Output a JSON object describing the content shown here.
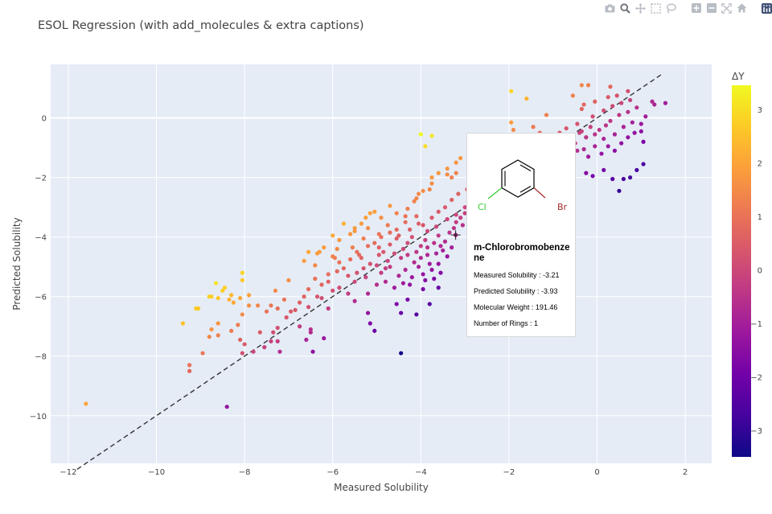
{
  "chart_data": {
    "type": "scatter",
    "title": "ESOL Regression (with add_molecules & extra captions)",
    "xlabel": "Measured Solubility",
    "ylabel": "Predicted Solubility",
    "xlim": [
      -12.4,
      2.6
    ],
    "ylim": [
      -11.6,
      1.8
    ],
    "x_ticks": [
      -12,
      -10,
      -8,
      -6,
      -4,
      -2,
      0,
      2
    ],
    "y_ticks": [
      -10,
      -8,
      -6,
      -4,
      -2,
      0
    ],
    "grid": true,
    "colorbar": {
      "title": "ΔY",
      "range": [
        -3.5,
        3.45
      ],
      "ticks": [
        -3,
        -2,
        -1,
        0,
        1,
        2,
        3
      ],
      "colorscale": [
        "#0d0887",
        "#46039f",
        "#7201a8",
        "#9c179e",
        "#bd3786",
        "#d8576b",
        "#ed7953",
        "#fb9f3a",
        "#fdca26",
        "#f0f921"
      ]
    },
    "reference_line": {
      "x": [
        -11.8,
        1.5
      ],
      "y": [
        -11.8,
        1.5
      ],
      "color": "#333333",
      "dash": true
    },
    "points": [
      [
        -11.6,
        -9.6
      ],
      [
        -8.4,
        -9.7
      ],
      [
        -4.45,
        -7.9
      ],
      [
        -9.25,
        -8.3
      ],
      [
        -9.25,
        -8.5
      ],
      [
        -9.4,
        -6.9
      ],
      [
        -8.95,
        -7.9
      ],
      [
        -9.1,
        -6.4
      ],
      [
        -9.05,
        -6.4
      ],
      [
        -8.8,
        -6.0
      ],
      [
        -8.75,
        -6.0
      ],
      [
        -8.6,
        -6.05
      ],
      [
        -8.35,
        -6.1
      ],
      [
        -8.1,
        -6.05
      ],
      [
        -8.5,
        -5.8
      ],
      [
        -8.65,
        -5.55
      ],
      [
        -8.05,
        -5.2
      ],
      [
        -8.05,
        -5.45
      ],
      [
        -8.45,
        -5.7
      ],
      [
        -8.25,
        -6.2
      ],
      [
        -8.3,
        -5.95
      ],
      [
        -7.9,
        -5.95
      ],
      [
        -7.9,
        -6.3
      ],
      [
        -7.7,
        -6.3
      ],
      [
        -8.6,
        -6.9
      ],
      [
        -8.6,
        -7.3
      ],
      [
        -8.75,
        -7.1
      ],
      [
        -8.8,
        -7.35
      ],
      [
        -8.3,
        -7.15
      ],
      [
        -8.1,
        -7.45
      ],
      [
        -8.05,
        -6.6
      ],
      [
        -8.15,
        -6.95
      ],
      [
        -7.65,
        -7.2
      ],
      [
        -8.0,
        -7.6
      ],
      [
        -8.05,
        -7.9
      ],
      [
        -7.8,
        -7.85
      ],
      [
        -7.55,
        -7.7
      ],
      [
        -7.4,
        -7.5
      ],
      [
        -7.35,
        -7.2
      ],
      [
        -7.25,
        -7.05
      ],
      [
        -7.25,
        -7.5
      ],
      [
        -7.2,
        -7.85
      ],
      [
        -7.5,
        -6.5
      ],
      [
        -7.25,
        -6.4
      ],
      [
        -7.1,
        -6.1
      ],
      [
        -7.3,
        -5.8
      ],
      [
        -7.4,
        -6.3
      ],
      [
        -7.0,
        -5.45
      ],
      [
        -6.95,
        -6.5
      ],
      [
        -6.75,
        -7.0
      ],
      [
        -6.5,
        -7.1
      ],
      [
        -6.5,
        -7.2
      ],
      [
        -6.6,
        -7.45
      ],
      [
        -6.45,
        -7.85
      ],
      [
        -6.2,
        -7.4
      ],
      [
        -6.35,
        -6.0
      ],
      [
        -6.1,
        -6.4
      ],
      [
        -6.1,
        -5.25
      ],
      [
        -6.4,
        -4.95
      ],
      [
        -6.35,
        -4.55
      ],
      [
        -6.3,
        -4.5
      ],
      [
        -6.0,
        -4.65
      ],
      [
        -5.95,
        -4.7
      ],
      [
        -5.85,
        -4.85
      ],
      [
        -5.9,
        -4.4
      ],
      [
        -6.0,
        -3.95
      ],
      [
        -5.75,
        -3.55
      ],
      [
        -5.5,
        -3.7
      ],
      [
        -5.5,
        -3.8
      ],
      [
        -5.35,
        -3.55
      ],
      [
        -5.25,
        -3.35
      ],
      [
        -5.15,
        -3.2
      ],
      [
        -5.05,
        -3.15
      ],
      [
        -4.9,
        -3.35
      ],
      [
        -4.7,
        -2.95
      ],
      [
        -4.55,
        -3.2
      ],
      [
        -4.35,
        -3.3
      ],
      [
        -4.3,
        -3.05
      ],
      [
        -4.15,
        -2.8
      ],
      [
        -4.1,
        -2.7
      ],
      [
        -4.05,
        -2.55
      ],
      [
        -3.95,
        -2.45
      ],
      [
        -3.8,
        -2.4
      ],
      [
        -3.75,
        -2.2
      ],
      [
        -3.75,
        -2.0
      ],
      [
        -3.6,
        -1.85
      ],
      [
        -3.4,
        -1.7
      ],
      [
        -3.4,
        -1.9
      ],
      [
        -3.3,
        -2.0
      ],
      [
        -3.2,
        -1.85
      ],
      [
        -4.0,
        -0.55
      ],
      [
        -3.9,
        -0.95
      ],
      [
        -3.75,
        -0.6
      ],
      [
        -3.2,
        -1.5
      ],
      [
        -3.1,
        -1.35
      ],
      [
        -2.85,
        -1.95
      ],
      [
        -2.75,
        -2.2
      ],
      [
        -2.7,
        -1.3
      ],
      [
        -1.95,
        0.9
      ],
      [
        -1.6,
        0.65
      ],
      [
        -1.95,
        -0.15
      ],
      [
        -1.9,
        -0.4
      ],
      [
        -1.7,
        -0.6
      ],
      [
        -1.45,
        -0.3
      ],
      [
        -1.3,
        -0.5
      ],
      [
        -1.25,
        -0.95
      ],
      [
        -1.15,
        0.1
      ],
      [
        -0.35,
        1.1
      ],
      [
        -0.2,
        1.1
      ],
      [
        -0.55,
        0.75
      ],
      [
        -0.3,
        0.45
      ],
      [
        -0.35,
        0.3
      ],
      [
        0.3,
        1.05
      ],
      [
        0.7,
        0.9
      ],
      [
        1.55,
        0.5
      ],
      [
        1.25,
        0.55
      ],
      [
        1.3,
        0.45
      ],
      [
        -0.1,
        0.05
      ],
      [
        -0.25,
        -0.65
      ],
      [
        -0.4,
        -0.5
      ],
      [
        -5.3,
        -4.05
      ],
      [
        -5.45,
        -4.5
      ],
      [
        -5.2,
        -4.3
      ],
      [
        -5.05,
        -4.2
      ],
      [
        -4.95,
        -4.35
      ],
      [
        -4.85,
        -4.5
      ],
      [
        -4.7,
        -4.25
      ],
      [
        -4.55,
        -4.05
      ],
      [
        -4.4,
        -4.4
      ],
      [
        -4.3,
        -4.2
      ],
      [
        -4.2,
        -4.0
      ],
      [
        -4.1,
        -4.5
      ],
      [
        -4.0,
        -4.3
      ],
      [
        -3.9,
        -4.1
      ],
      [
        -3.85,
        -4.35
      ],
      [
        -3.7,
        -4.2
      ],
      [
        -3.6,
        -3.95
      ],
      [
        -3.55,
        -4.3
      ],
      [
        -3.45,
        -4.15
      ],
      [
        -3.35,
        -3.85
      ],
      [
        -3.25,
        -3.7
      ],
      [
        -3.2,
        -3.5
      ],
      [
        -3.1,
        -3.35
      ],
      [
        -3.05,
        -3.6
      ],
      [
        -3.0,
        -3.2
      ],
      [
        -2.9,
        -3.0
      ],
      [
        -2.85,
        -2.8
      ],
      [
        -2.8,
        -3.3
      ],
      [
        -2.7,
        -2.9
      ],
      [
        -2.6,
        -2.6
      ],
      [
        -2.55,
        -2.4
      ],
      [
        -2.5,
        -2.75
      ],
      [
        -5.6,
        -4.75
      ],
      [
        -5.55,
        -4.35
      ],
      [
        -5.35,
        -4.7
      ],
      [
        -5.15,
        -4.9
      ],
      [
        -4.95,
        -4.6
      ],
      [
        -4.75,
        -4.8
      ],
      [
        -4.6,
        -4.55
      ],
      [
        -4.45,
        -4.7
      ],
      [
        -4.3,
        -4.6
      ],
      [
        -4.15,
        -4.85
      ],
      [
        -4.0,
        -4.7
      ],
      [
        -3.85,
        -4.6
      ],
      [
        -3.8,
        -4.9
      ],
      [
        -3.65,
        -4.55
      ],
      [
        -3.5,
        -4.45
      ],
      [
        -3.4,
        -4.65
      ],
      [
        -3.3,
        -4.35
      ],
      [
        -4.9,
        -5.2
      ],
      [
        -4.7,
        -5.0
      ],
      [
        -4.5,
        -5.3
      ],
      [
        -4.35,
        -5.1
      ],
      [
        -4.2,
        -5.35
      ],
      [
        -4.05,
        -5.0
      ],
      [
        -3.95,
        -5.25
      ],
      [
        -3.75,
        -5.1
      ],
      [
        -3.6,
        -4.9
      ],
      [
        -4.4,
        -5.55
      ],
      [
        -4.25,
        -5.6
      ],
      [
        -3.9,
        -5.45
      ],
      [
        -5.25,
        -5.35
      ],
      [
        -5.45,
        -5.2
      ],
      [
        -5.5,
        -5.5
      ],
      [
        -5.65,
        -5.3
      ],
      [
        -5.75,
        -5.05
      ],
      [
        -5.9,
        -5.15
      ],
      [
        -6.1,
        -5.5
      ],
      [
        -6.25,
        -5.6
      ],
      [
        -6.4,
        -5.4
      ],
      [
        -6.55,
        -5.75
      ],
      [
        -6.65,
        -6.0
      ],
      [
        -6.75,
        -6.2
      ],
      [
        -6.85,
        -6.45
      ],
      [
        -7.05,
        -6.7
      ],
      [
        -6.55,
        -6.35
      ],
      [
        -6.25,
        -6.05
      ],
      [
        -6.0,
        -5.8
      ],
      [
        -5.85,
        -5.7
      ],
      [
        -5.65,
        -5.9
      ],
      [
        -5.5,
        -6.15
      ],
      [
        -5.2,
        -5.9
      ],
      [
        -5.0,
        -5.6
      ],
      [
        -4.8,
        -5.5
      ],
      [
        -4.6,
        -5.7
      ],
      [
        -6.65,
        -4.8
      ],
      [
        -6.55,
        -4.5
      ],
      [
        -6.2,
        -4.35
      ],
      [
        -5.85,
        -4.1
      ],
      [
        -5.6,
        -3.9
      ],
      [
        -5.2,
        -3.7
      ],
      [
        -4.95,
        -3.9
      ],
      [
        -4.75,
        -3.6
      ],
      [
        -4.55,
        -3.75
      ],
      [
        -4.35,
        -3.5
      ],
      [
        -4.1,
        -3.3
      ],
      [
        -3.95,
        -3.6
      ],
      [
        -3.75,
        -3.35
      ],
      [
        -3.6,
        -3.15
      ],
      [
        -3.45,
        -3.0
      ],
      [
        -3.3,
        -2.75
      ],
      [
        -3.15,
        -2.55
      ],
      [
        -2.95,
        -2.4
      ],
      [
        -2.85,
        -2.15
      ],
      [
        -4.9,
        -4.0
      ],
      [
        -4.7,
        -3.85
      ],
      [
        -4.5,
        -3.95
      ],
      [
        -4.25,
        -3.75
      ],
      [
        -4.05,
        -3.55
      ],
      [
        -3.85,
        -3.8
      ],
      [
        -3.65,
        -3.65
      ],
      [
        -3.4,
        -3.4
      ],
      [
        -3.2,
        -3.25
      ],
      [
        -3.0,
        -3.0
      ],
      [
        -2.75,
        -2.75
      ],
      [
        -2.6,
        -2.95
      ],
      [
        -2.45,
        -2.55
      ],
      [
        -2.3,
        -2.35
      ],
      [
        -2.15,
        -2.1
      ],
      [
        -2.0,
        -1.95
      ],
      [
        -1.85,
        -1.75
      ],
      [
        -1.75,
        -2.05
      ],
      [
        -1.6,
        -1.6
      ],
      [
        -1.45,
        -1.35
      ],
      [
        -1.3,
        -1.15
      ],
      [
        -1.15,
        -0.9
      ],
      [
        -1.0,
        -0.7
      ],
      [
        -0.85,
        -0.5
      ],
      [
        -0.7,
        -0.35
      ],
      [
        -0.6,
        -0.6
      ],
      [
        -0.5,
        -0.85
      ],
      [
        -0.45,
        -0.2
      ],
      [
        -0.35,
        -0.45
      ],
      [
        -0.25,
        -0.65
      ],
      [
        -0.15,
        -0.3
      ],
      [
        -0.05,
        -0.55
      ],
      [
        0.05,
        -0.4
      ],
      [
        0.15,
        -0.7
      ],
      [
        0.2,
        -0.25
      ],
      [
        0.3,
        -0.1
      ],
      [
        0.4,
        -0.55
      ],
      [
        0.5,
        0.1
      ],
      [
        0.6,
        -0.3
      ],
      [
        0.7,
        0.2
      ],
      [
        0.8,
        -0.15
      ],
      [
        0.9,
        0.35
      ],
      [
        1.0,
        -0.2
      ],
      [
        1.1,
        0.05
      ],
      [
        0.15,
        0.25
      ],
      [
        0.35,
        0.4
      ],
      [
        0.55,
        0.5
      ],
      [
        0.75,
        0.6
      ],
      [
        0.25,
        0.7
      ],
      [
        -0.05,
        0.55
      ],
      [
        0.45,
        0.75
      ],
      [
        -0.6,
        -0.9
      ],
      [
        -0.45,
        -1.1
      ],
      [
        -0.3,
        -1.05
      ],
      [
        -0.2,
        -1.3
      ],
      [
        -0.05,
        -0.95
      ],
      [
        0.1,
        -1.2
      ],
      [
        0.25,
        -0.95
      ],
      [
        0.4,
        -1.1
      ],
      [
        0.55,
        -0.85
      ],
      [
        0.7,
        -0.65
      ],
      [
        0.85,
        -0.5
      ],
      [
        1.0,
        -0.45
      ],
      [
        1.05,
        -0.8
      ],
      [
        -0.75,
        -1.05
      ],
      [
        -0.55,
        -1.4
      ],
      [
        -0.25,
        -1.85
      ],
      [
        -0.1,
        -1.95
      ],
      [
        0.15,
        -1.75
      ],
      [
        0.6,
        -2.05
      ],
      [
        0.75,
        -2.0
      ],
      [
        0.9,
        -1.75
      ],
      [
        1.05,
        -1.55
      ],
      [
        0.35,
        -2.05
      ],
      [
        0.5,
        -2.45
      ],
      [
        -0.75,
        -1.4
      ],
      [
        -0.95,
        -1.25
      ],
      [
        -1.1,
        -1.5
      ],
      [
        -1.3,
        -1.8
      ],
      [
        -1.4,
        -1.15
      ],
      [
        -1.55,
        -1.3
      ],
      [
        -0.85,
        -1.6
      ],
      [
        -5.0,
        -4.95
      ],
      [
        -4.8,
        -5.05
      ],
      [
        -5.4,
        -4.6
      ],
      [
        -5.3,
        -5.05
      ],
      [
        -4.55,
        -6.25
      ],
      [
        -4.45,
        -6.55
      ],
      [
        -4.1,
        -6.6
      ],
      [
        -3.8,
        -6.25
      ],
      [
        -4.3,
        -6.1
      ],
      [
        -5.2,
        -6.55
      ],
      [
        -5.05,
        -7.15
      ],
      [
        -5.15,
        -6.9
      ],
      [
        -3.6,
        -5.7
      ],
      [
        -3.95,
        -5.75
      ],
      [
        -3.7,
        -5.4
      ],
      [
        -3.55,
        -5.2
      ]
    ]
  },
  "modebar": {
    "icons": [
      "camera-icon",
      "zoom-icon",
      "pan-icon",
      "box-select-icon",
      "lasso-icon",
      "zoom-in-icon",
      "zoom-out-icon",
      "autoscale-icon",
      "reset-icon",
      "plotly-logo-icon"
    ]
  },
  "tooltip": {
    "name": "m-Chlorobromobenzene",
    "lines": [
      "Measured Solubility : -3.21",
      "Predicted Solubility : -3.93",
      "Molecular Weight : 191.46",
      "Number of Rings : 1"
    ],
    "atoms": {
      "cl": "Cl",
      "br": "Br"
    },
    "hover_point": [
      -3.21,
      -3.93
    ]
  }
}
